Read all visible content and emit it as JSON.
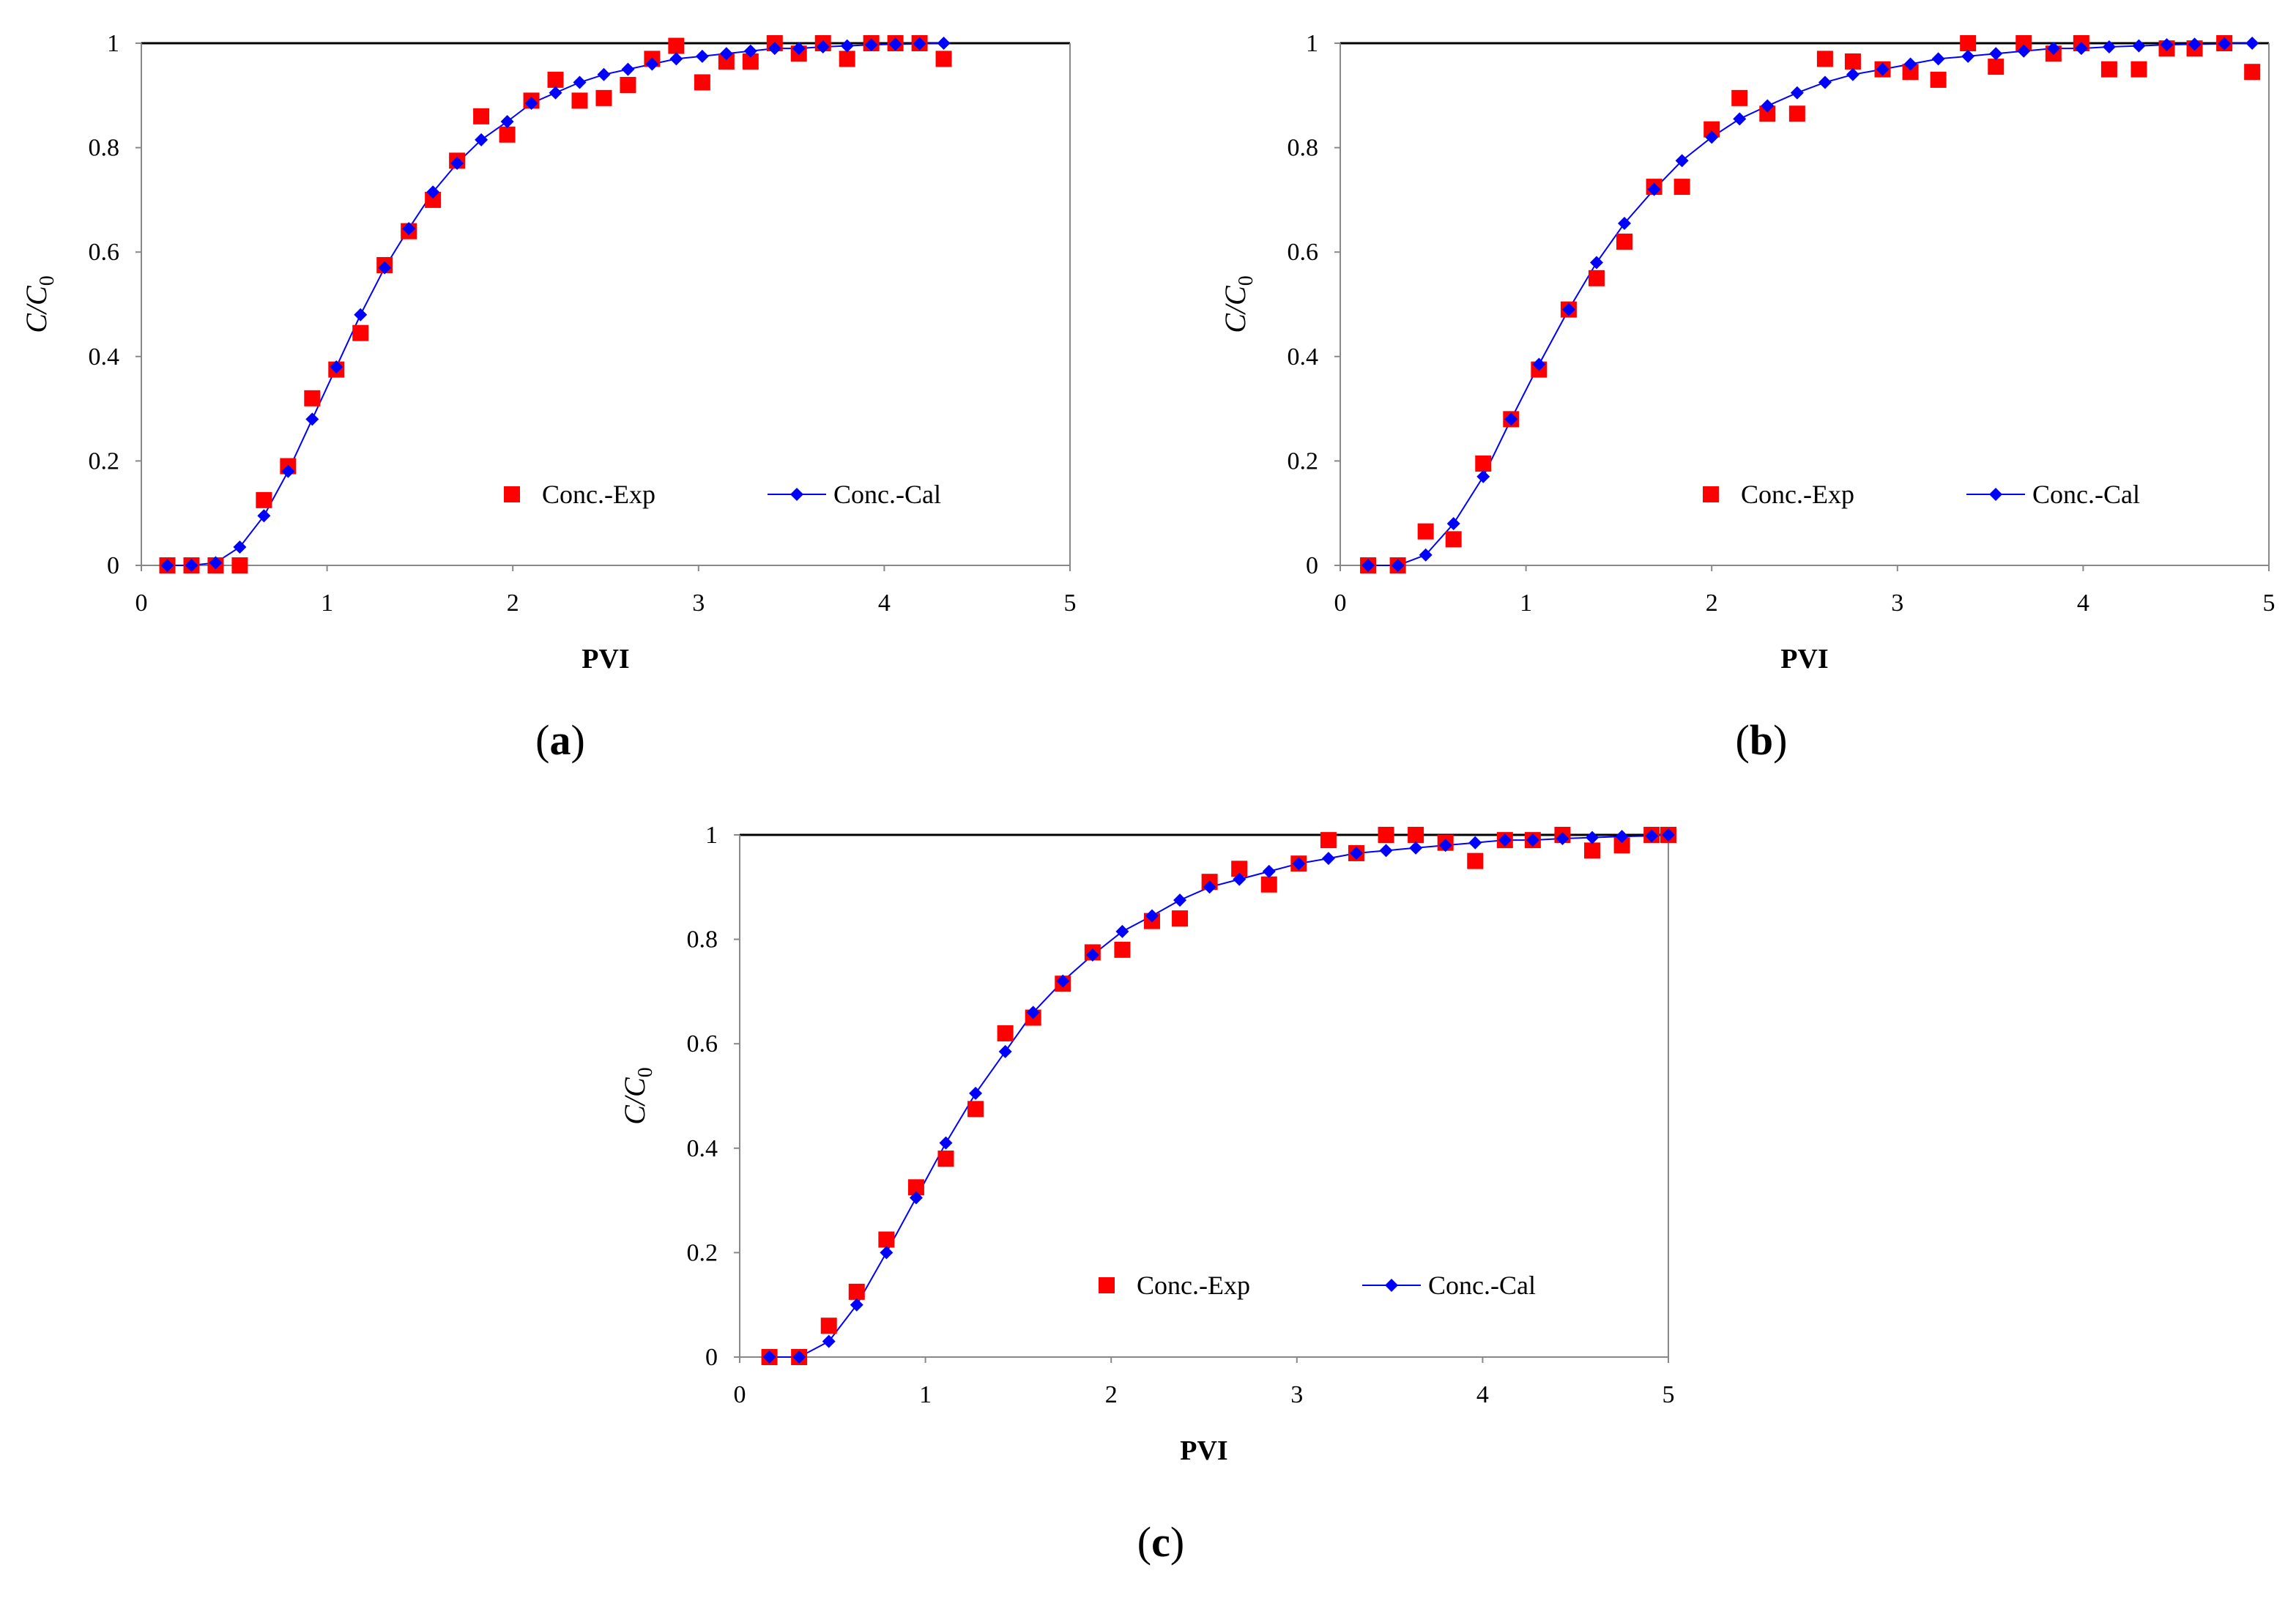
{
  "panels": [
    {
      "caption_letter": "a"
    },
    {
      "caption_letter": "b"
    },
    {
      "caption_letter": "c"
    }
  ],
  "colors": {
    "exp": "#ff0000",
    "cal": "#0000ff",
    "frame": "#000000"
  },
  "chart_data": [
    {
      "type": "scatter",
      "xlabel": "PVI",
      "ylabel": "C/C0",
      "xlim": [
        0,
        5
      ],
      "ylim": [
        0,
        1
      ],
      "xticks": [
        0,
        1,
        2,
        3,
        4,
        5
      ],
      "yticks": [
        0,
        0.2,
        0.4,
        0.6,
        0.8,
        1
      ],
      "ytick_labels": [
        "0",
        "0.2",
        "0.4",
        "0.6",
        "0.8",
        "1"
      ],
      "legend": [
        "Conc.-Exp",
        "Conc.-Cal"
      ],
      "series": [
        {
          "name": "Conc.-Exp",
          "marker": "square",
          "x": [
            0.14,
            0.27,
            0.4,
            0.53,
            0.66,
            0.79,
            0.92,
            1.05,
            1.18,
            1.31,
            1.44,
            1.57,
            1.7,
            1.83,
            1.97,
            2.1,
            2.23,
            2.36,
            2.49,
            2.62,
            2.75,
            2.88,
            3.02,
            3.15,
            3.28,
            3.41,
            3.54,
            3.67,
            3.8,
            3.93,
            4.06,
            4.19,
            4.32
          ],
          "y": [
            0,
            0,
            0,
            0,
            0.125,
            0.19,
            0.32,
            0.375,
            0.445,
            0.575,
            0.64,
            0.7,
            0.775,
            0.86,
            0.825,
            0.89,
            0.93,
            0.89,
            0.895,
            0.92,
            0.97,
            0.995,
            0.925,
            0.965,
            0.965,
            1.0,
            0.98,
            1.0,
            0.97,
            1.0,
            1.0,
            1.0,
            0.97
          ]
        },
        {
          "name": "Conc.-Cal",
          "marker": "diamond",
          "x": [
            0.14,
            0.27,
            0.4,
            0.53,
            0.66,
            0.79,
            0.92,
            1.05,
            1.18,
            1.31,
            1.44,
            1.57,
            1.7,
            1.83,
            1.97,
            2.1,
            2.23,
            2.36,
            2.49,
            2.62,
            2.75,
            2.88,
            3.02,
            3.15,
            3.28,
            3.41,
            3.54,
            3.67,
            3.8,
            3.93,
            4.06,
            4.19,
            4.32
          ],
          "y": [
            0,
            0,
            0.005,
            0.035,
            0.095,
            0.18,
            0.28,
            0.38,
            0.48,
            0.57,
            0.645,
            0.715,
            0.77,
            0.815,
            0.85,
            0.885,
            0.905,
            0.925,
            0.94,
            0.95,
            0.96,
            0.97,
            0.975,
            0.98,
            0.985,
            0.99,
            0.99,
            0.993,
            0.995,
            0.997,
            0.998,
            0.999,
            1.0
          ]
        }
      ]
    },
    {
      "type": "scatter",
      "xlabel": "PVI",
      "ylabel": "C/C0",
      "xlim": [
        0,
        5
      ],
      "ylim": [
        0,
        1
      ],
      "xticks": [
        0,
        1,
        2,
        3,
        4,
        5
      ],
      "yticks": [
        0,
        0.2,
        0.4,
        0.6,
        0.8,
        1
      ],
      "ytick_labels": [
        "0",
        "0.2",
        "0.4",
        "0.6",
        "0.8",
        "1"
      ],
      "legend": [
        "Conc.-Exp",
        "Conc.-Cal"
      ],
      "series": [
        {
          "name": "Conc.-Exp",
          "marker": "square",
          "x": [
            0.15,
            0.31,
            0.46,
            0.61,
            0.77,
            0.92,
            1.07,
            1.23,
            1.38,
            1.53,
            1.69,
            1.84,
            2.0,
            2.15,
            2.3,
            2.46,
            2.61,
            2.76,
            2.92,
            3.07,
            3.22,
            3.38,
            3.53,
            3.68,
            3.84,
            3.99,
            4.14,
            4.3,
            4.45,
            4.6,
            4.76,
            4.91
          ],
          "y": [
            0,
            0,
            0.065,
            0.05,
            0.195,
            0.28,
            0.375,
            0.49,
            0.55,
            0.62,
            0.725,
            0.725,
            0.835,
            0.895,
            0.865,
            0.865,
            0.97,
            0.965,
            0.95,
            0.945,
            0.93,
            1.0,
            0.955,
            1.0,
            0.98,
            1.0,
            0.95,
            0.95,
            0.99,
            0.99,
            1.0,
            0.945
          ]
        },
        {
          "name": "Conc.-Cal",
          "marker": "diamond",
          "x": [
            0.15,
            0.31,
            0.46,
            0.61,
            0.77,
            0.92,
            1.07,
            1.23,
            1.38,
            1.53,
            1.69,
            1.84,
            2.0,
            2.15,
            2.3,
            2.46,
            2.61,
            2.76,
            2.92,
            3.07,
            3.22,
            3.38,
            3.53,
            3.68,
            3.84,
            3.99,
            4.14,
            4.3,
            4.45,
            4.6,
            4.76,
            4.91
          ],
          "y": [
            0,
            0,
            0.02,
            0.08,
            0.17,
            0.28,
            0.385,
            0.49,
            0.58,
            0.655,
            0.72,
            0.775,
            0.82,
            0.855,
            0.88,
            0.905,
            0.925,
            0.94,
            0.95,
            0.96,
            0.97,
            0.975,
            0.98,
            0.985,
            0.99,
            0.99,
            0.993,
            0.995,
            0.997,
            0.998,
            0.999,
            1.0
          ]
        }
      ]
    },
    {
      "type": "scatter",
      "xlabel": "PVI",
      "ylabel": "C/C0",
      "xlim": [
        0,
        5
      ],
      "ylim": [
        0,
        1
      ],
      "xticks": [
        0,
        1,
        2,
        3,
        4,
        5
      ],
      "yticks": [
        0,
        0.2,
        0.4,
        0.6,
        0.8,
        1
      ],
      "ytick_labels": [
        "0",
        "0.2",
        "0.4",
        "0.6",
        "0.8",
        "1"
      ],
      "legend": [
        "Conc.-Exp",
        "Conc.-Cal"
      ],
      "series": [
        {
          "name": "Conc.-Exp",
          "marker": "square",
          "x": [
            0.16,
            0.32,
            0.48,
            0.63,
            0.79,
            0.95,
            1.11,
            1.27,
            1.43,
            1.58,
            1.74,
            1.9,
            2.06,
            2.22,
            2.37,
            2.53,
            2.69,
            2.85,
            3.01,
            3.17,
            3.32,
            3.48,
            3.64,
            3.8,
            3.96,
            4.12,
            4.27,
            4.43,
            4.59,
            4.75,
            4.91,
            5.0
          ],
          "y": [
            0,
            0,
            0.06,
            0.125,
            0.225,
            0.325,
            0.38,
            0.475,
            0.62,
            0.65,
            0.715,
            0.775,
            0.78,
            0.835,
            0.84,
            0.91,
            0.935,
            0.905,
            0.945,
            0.99,
            0.965,
            1.0,
            1.0,
            0.985,
            0.95,
            0.99,
            0.99,
            1.0,
            0.97,
            0.98,
            1.0,
            1.0
          ]
        },
        {
          "name": "Conc.-Cal",
          "marker": "diamond",
          "x": [
            0.16,
            0.32,
            0.48,
            0.63,
            0.79,
            0.95,
            1.11,
            1.27,
            1.43,
            1.58,
            1.74,
            1.9,
            2.06,
            2.22,
            2.37,
            2.53,
            2.69,
            2.85,
            3.01,
            3.17,
            3.32,
            3.48,
            3.64,
            3.8,
            3.96,
            4.12,
            4.27,
            4.43,
            4.59,
            4.75,
            4.91,
            5.0
          ],
          "y": [
            0,
            0,
            0.03,
            0.1,
            0.2,
            0.305,
            0.41,
            0.505,
            0.585,
            0.66,
            0.72,
            0.77,
            0.815,
            0.845,
            0.875,
            0.9,
            0.915,
            0.93,
            0.945,
            0.955,
            0.965,
            0.97,
            0.975,
            0.98,
            0.985,
            0.99,
            0.99,
            0.993,
            0.995,
            0.997,
            0.998,
            1.0
          ]
        }
      ]
    }
  ]
}
